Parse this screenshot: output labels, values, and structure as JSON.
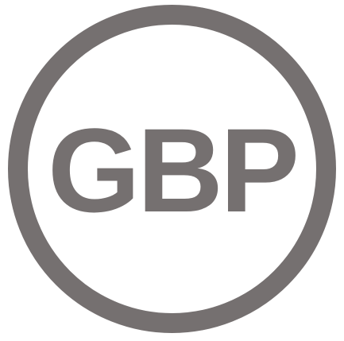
{
  "icon": {
    "name": "gbp-currency-icon",
    "text": "GBP",
    "color": "#757070",
    "background": "#ffffff"
  }
}
